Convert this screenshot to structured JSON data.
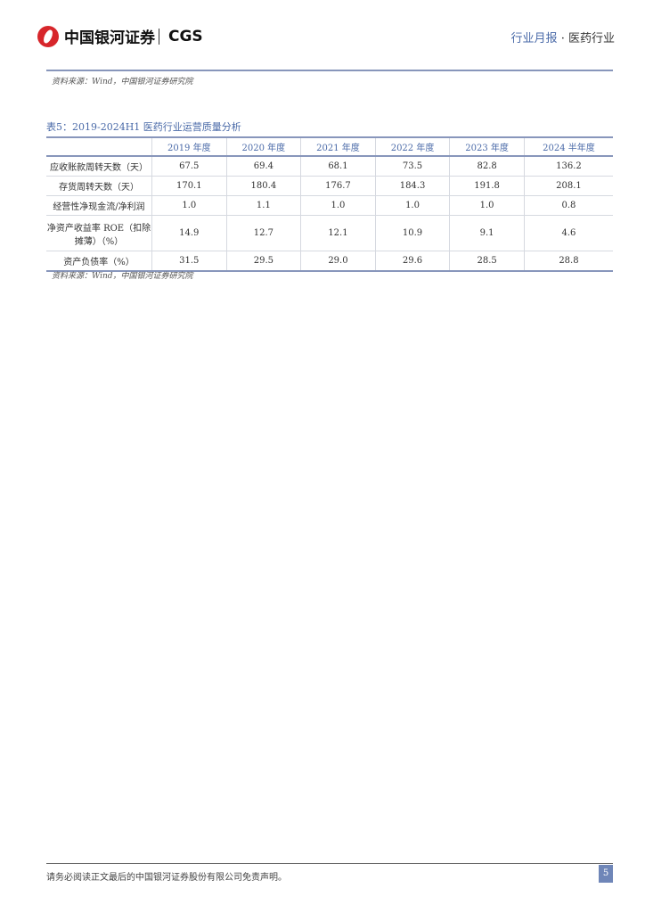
{
  "header": {
    "logo_text": "中国银河证券",
    "logo_brand": "CGS",
    "report_type": "行业月报",
    "separator": "·",
    "industry": "医药行业"
  },
  "top_source": "资料来源：Wind，中国银河证券研究院",
  "table": {
    "title": "表5：2019-2024H1 医药行业运营质量分析",
    "columns": [
      "",
      "2019 年度",
      "2020 年度",
      "2021 年度",
      "2022 年度",
      "2023 年度",
      "2024 半年度"
    ],
    "rows": [
      {
        "label": "应收账款周转天数（天）",
        "values": [
          "67.5",
          "69.4",
          "68.1",
          "73.5",
          "82.8",
          "136.2"
        ]
      },
      {
        "label": "存货周转天数（天）",
        "values": [
          "170.1",
          "180.4",
          "176.7",
          "184.3",
          "191.8",
          "208.1"
        ]
      },
      {
        "label": "经营性净现金流/净利润",
        "values": [
          "1.0",
          "1.1",
          "1.0",
          "1.0",
          "1.0",
          "0.8"
        ]
      },
      {
        "label": "净资产收益率 ROE（扣除摊薄）（%）",
        "values": [
          "14.9",
          "12.7",
          "12.1",
          "10.9",
          "9.1",
          "4.6"
        ]
      },
      {
        "label": "资产负债率（%）",
        "values": [
          "31.5",
          "29.5",
          "29.0",
          "29.6",
          "28.5",
          "28.8"
        ]
      }
    ],
    "source": "资料来源：Wind，中国银河证券研究院"
  },
  "footer": {
    "disclaimer": "请务必阅读正文最后的中国银河证券股份有限公司免责声明。",
    "page_number": "5"
  }
}
